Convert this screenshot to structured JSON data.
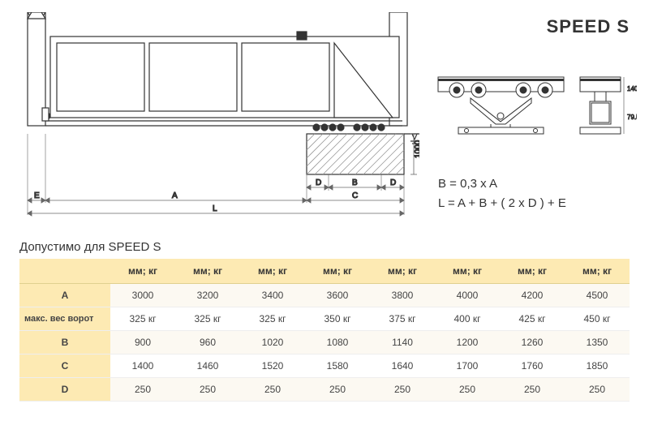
{
  "title": "SPEED S",
  "formulas": {
    "line1": "B = 0,3 x A",
    "line2": "L = A + B + ( 2 x D ) + E"
  },
  "table": {
    "title": "Допустимо для SPEED S",
    "header_unit": "мм; кг",
    "rows": [
      {
        "label": "A",
        "values": [
          "3000",
          "3200",
          "3400",
          "3600",
          "3800",
          "4000",
          "4200",
          "4500"
        ]
      },
      {
        "label": "макс. вес ворот",
        "values": [
          "325 кг",
          "325 кг",
          "325 кг",
          "350 кг",
          "375 кг",
          "400 кг",
          "425 кг",
          "450 кг"
        ]
      },
      {
        "label": "B",
        "values": [
          "900",
          "960",
          "1020",
          "1080",
          "1140",
          "1200",
          "1260",
          "1350"
        ]
      },
      {
        "label": "C",
        "values": [
          "1400",
          "1460",
          "1520",
          "1580",
          "1640",
          "1700",
          "1760",
          "1850"
        ]
      },
      {
        "label": "D",
        "values": [
          "250",
          "250",
          "250",
          "250",
          "250",
          "250",
          "250",
          "250"
        ]
      }
    ]
  },
  "diagram": {
    "dimension_labels": [
      "E",
      "A",
      "D",
      "B",
      "D",
      "C",
      "L",
      "1000"
    ],
    "colors": {
      "stroke": "#333333",
      "dimension": "#666666",
      "hatch": "#999999",
      "fill_bg": "#ffffff"
    }
  }
}
